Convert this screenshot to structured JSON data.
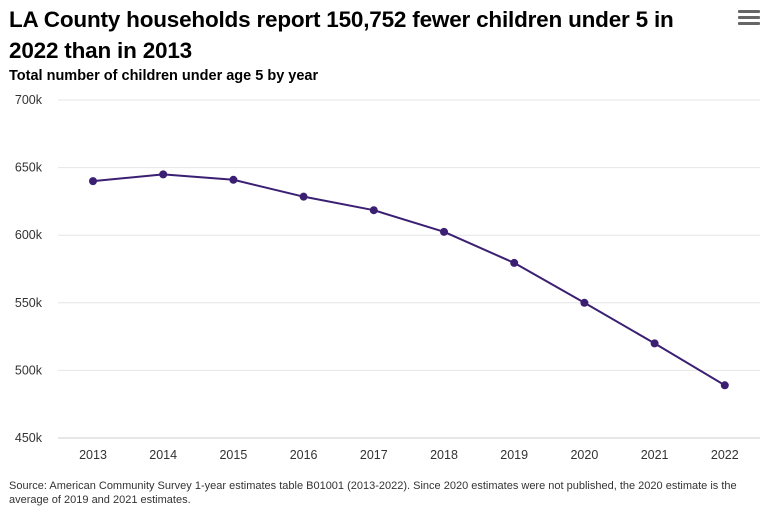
{
  "header": {
    "title": "LA County households report 150,752 fewer children under 5 in 2022 than in 2013",
    "subtitle": "Total number of children under age 5 by year",
    "menu_icon": "hamburger-menu-icon"
  },
  "footer": {
    "source": "Source: American Community Survey 1-year estimates table B01001 (2013-2022). Since 2020 estimates were not published, the 2020 estimate is the average of 2019 and 2021 estimates."
  },
  "colors": {
    "line": "#3b1f73",
    "grid": "#e6e6e6",
    "axis_text": "#333333"
  },
  "chart_data": {
    "type": "line",
    "title": "LA County households report 150,752 fewer children under 5 in 2022 than in 2013",
    "subtitle": "Total number of children under age 5 by year",
    "categories": [
      "2013",
      "2014",
      "2015",
      "2016",
      "2017",
      "2018",
      "2019",
      "2020",
      "2021",
      "2022"
    ],
    "series": [
      {
        "values": [
          640000,
          645000,
          641000,
          628500,
          618500,
          602500,
          579500,
          550000,
          520000,
          489000
        ]
      }
    ],
    "ylim": [
      450000,
      700000
    ],
    "yticks": [
      450000,
      500000,
      550000,
      600000,
      650000,
      700000
    ],
    "ytick_labels": [
      "450k",
      "500k",
      "550k",
      "600k",
      "650k",
      "700k"
    ],
    "grid": true,
    "legend": "none"
  }
}
